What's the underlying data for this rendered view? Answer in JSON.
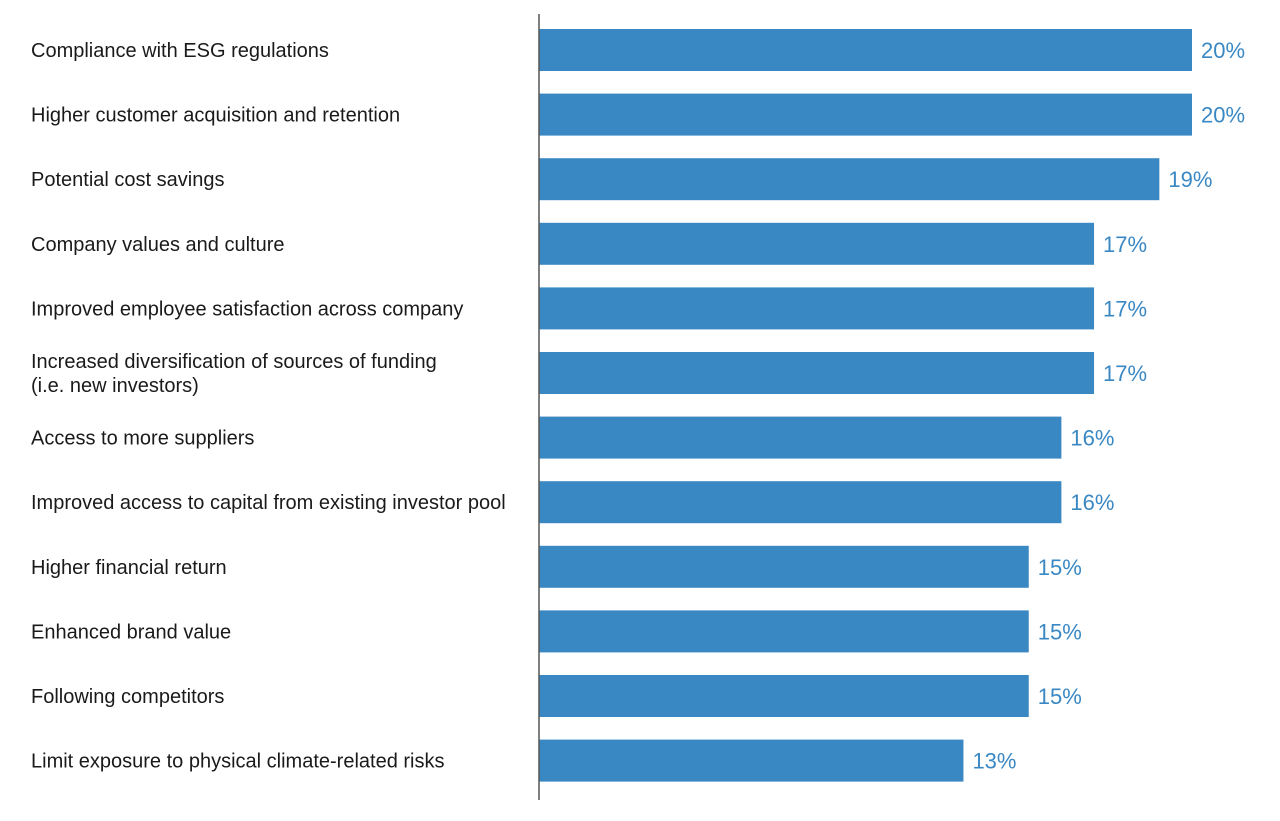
{
  "chart_data": {
    "type": "bar",
    "orientation": "horizontal",
    "categories": [
      [
        "Compliance with ESG regulations"
      ],
      [
        "Higher customer acquisition and retention"
      ],
      [
        "Potential cost savings"
      ],
      [
        "Company values and culture"
      ],
      [
        "Improved employee satisfaction across company"
      ],
      [
        "Increased diversification of sources of funding",
        "(i.e. new investors)"
      ],
      [
        "Access to more suppliers"
      ],
      [
        "Improved access to capital from existing investor pool"
      ],
      [
        "Higher financial return"
      ],
      [
        "Enhanced brand value"
      ],
      [
        "Following competitors"
      ],
      [
        "Limit exposure to physical climate-related risks"
      ]
    ],
    "values": [
      20,
      20,
      19,
      17,
      17,
      17,
      16,
      16,
      15,
      15,
      15,
      13
    ],
    "value_labels": [
      "20%",
      "20%",
      "19%",
      "17%",
      "17%",
      "17%",
      "16%",
      "16%",
      "15%",
      "15%",
      "15%",
      "13%"
    ],
    "title": "",
    "xlabel": "",
    "ylabel": "",
    "xlim": [
      0,
      20
    ],
    "grid": false,
    "legend": "none",
    "bar_color": "#3a88c3",
    "label_color": "#3a88c3"
  }
}
